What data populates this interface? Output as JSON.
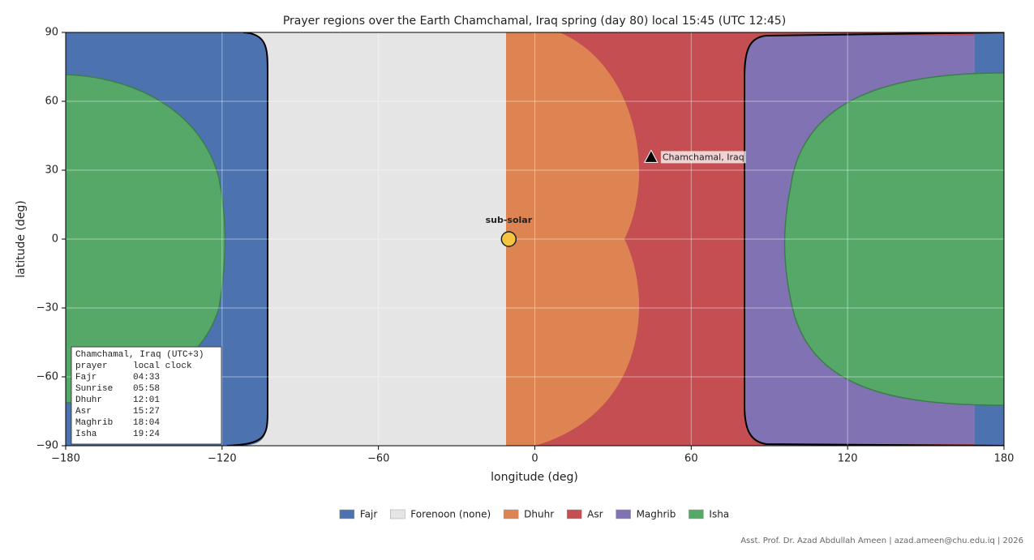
{
  "chart_data": {
    "type": "region-map",
    "title": "Prayer regions over the Earth   Chamchamal, Iraq   spring (day 80)   local 15:45 (UTC 12:45)",
    "xlabel": "longitude (deg)",
    "ylabel": "latitude (deg)",
    "xlim": [
      -180,
      180
    ],
    "ylim": [
      -90,
      90
    ],
    "xticks": [
      {
        "value": -180,
        "label": "−180"
      },
      {
        "value": -120,
        "label": "−120"
      },
      {
        "value": -60,
        "label": "−60"
      },
      0,
      60,
      120,
      180
    ],
    "yticks": [
      {
        "value": -90,
        "label": "−90"
      },
      {
        "value": -60,
        "label": "−60"
      },
      {
        "value": -30,
        "label": "−30"
      },
      0,
      30,
      60,
      90
    ],
    "grid": true,
    "regions": [
      {
        "name": "Fajr",
        "color": "#4c72b0"
      },
      {
        "name": "Forenoon (none)",
        "color": "#e5e5e5"
      },
      {
        "name": "Dhuhr",
        "color": "#dd8452"
      },
      {
        "name": "Asr",
        "color": "#c44e52"
      },
      {
        "name": "Maghrib",
        "color": "#8172b3"
      },
      {
        "name": "Isha",
        "color": "#55a868"
      }
    ],
    "points": [
      {
        "label": "sub-solar",
        "x": -10,
        "y": 0,
        "color": "#f5c542"
      },
      {
        "label": "Chamchamal, Iraq",
        "x": 44.6,
        "y": 35.5,
        "color": "#000000"
      }
    ],
    "table": {
      "title": "Chamchamal, Iraq  (UTC+3)",
      "columns": [
        "prayer",
        "local clock"
      ],
      "rows": [
        [
          "Fajr",
          "04:33"
        ],
        [
          "Sunrise",
          "05:58"
        ],
        [
          "Dhuhr",
          "12:01"
        ],
        [
          "Asr",
          "15:27"
        ],
        [
          "Maghrib",
          "18:04"
        ],
        [
          "Isha",
          "19:24"
        ]
      ]
    },
    "footer": "Asst. Prof. Dr. Azad Abdullah Ameen  |  azad.ameen@chu.edu.iq  |  2026"
  }
}
